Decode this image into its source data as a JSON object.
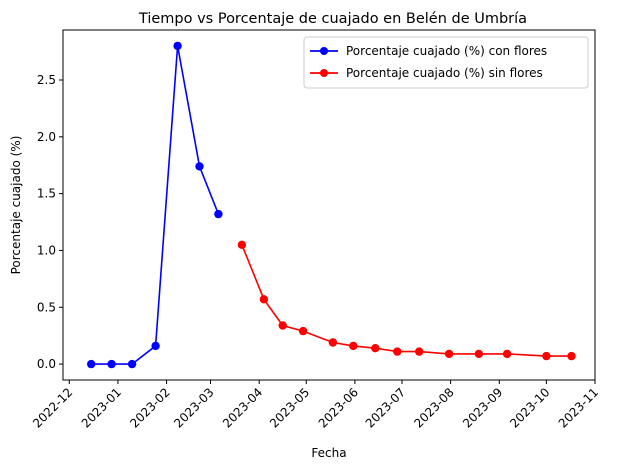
{
  "chart_data": {
    "type": "line",
    "title": "Tiempo vs Porcentaje de cuajado en Belén de Umbría",
    "xlabel": "Fecha",
    "ylabel": "Porcentaje cuajado (%)",
    "x_ticks": [
      "2022-12-01",
      "2023-01-01",
      "2023-02-01",
      "2023-03-01",
      "2023-04-01",
      "2023-05-01",
      "2023-06-01",
      "2023-07-01",
      "2023-08-01",
      "2023-09-01",
      "2023-10-01",
      "2023-11-01"
    ],
    "x_tick_labels": [
      "2022-12",
      "2023-01",
      "2023-02",
      "2023-03",
      "2023-04",
      "2023-05",
      "2023-06",
      "2023-07",
      "2023-08",
      "2023-09",
      "2023-10",
      "2023-11"
    ],
    "y_ticks": [
      0.0,
      0.5,
      1.0,
      1.5,
      2.0,
      2.5
    ],
    "y_tick_labels": [
      "0.0",
      "0.5",
      "1.0",
      "1.5",
      "2.0",
      "2.5"
    ],
    "xlim": [
      "2022-11-27",
      "2023-11-01"
    ],
    "ylim": [
      -0.14,
      2.94
    ],
    "grid": false,
    "legend_position": "top-right",
    "series": [
      {
        "name": "Porcentaje cuajado (%) con flores",
        "color": "#0000ff",
        "marker": "circle",
        "x": [
          "2022-12-15",
          "2022-12-28",
          "2023-01-10",
          "2023-01-25",
          "2023-02-08",
          "2023-02-22",
          "2023-03-06"
        ],
        "y": [
          0.0,
          0.0,
          0.0,
          0.16,
          2.8,
          1.74,
          1.32
        ]
      },
      {
        "name": "Porcentaje cuajado (%) sin flores",
        "color": "#ff0000",
        "marker": "circle",
        "x": [
          "2023-03-21",
          "2023-04-04",
          "2023-04-16",
          "2023-04-29",
          "2023-05-18",
          "2023-05-31",
          "2023-06-14",
          "2023-06-28",
          "2023-07-12",
          "2023-07-31",
          "2023-08-19",
          "2023-09-06",
          "2023-10-01",
          "2023-10-17"
        ],
        "y": [
          1.05,
          0.57,
          0.34,
          0.29,
          0.19,
          0.16,
          0.14,
          0.11,
          0.11,
          0.09,
          0.09,
          0.09,
          0.07,
          0.07
        ]
      }
    ]
  }
}
